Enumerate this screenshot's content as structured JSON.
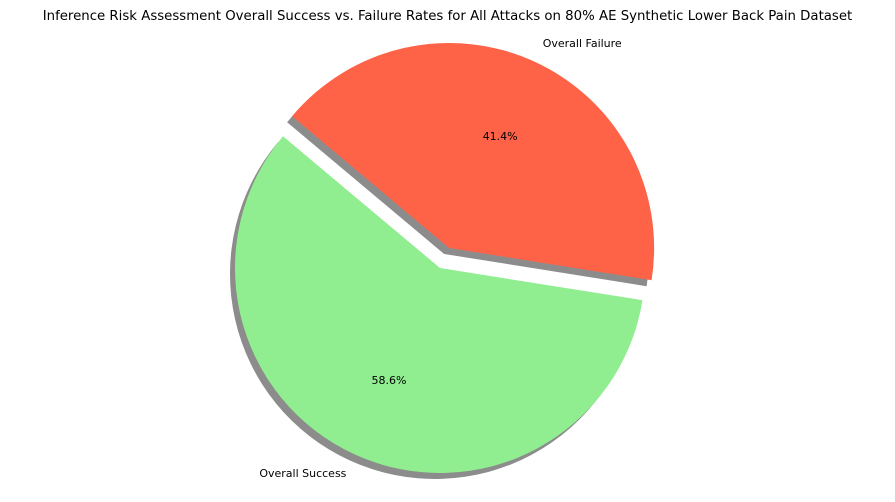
{
  "chart_data": {
    "type": "pie",
    "title": "Inference Risk Assessment Overall Success vs. Failure Rates for All Attacks on 80% AE Synthetic Lower Back Pain Dataset",
    "slices": [
      {
        "label": "Overall Success",
        "value": 58.6,
        "pct_label": "58.6%",
        "color": "#90ee90",
        "exploded": false
      },
      {
        "label": "Overall Failure",
        "value": 41.4,
        "pct_label": "41.4%",
        "color": "#ff6347",
        "exploded": true
      }
    ],
    "shadow": true,
    "start_angle": 140
  }
}
